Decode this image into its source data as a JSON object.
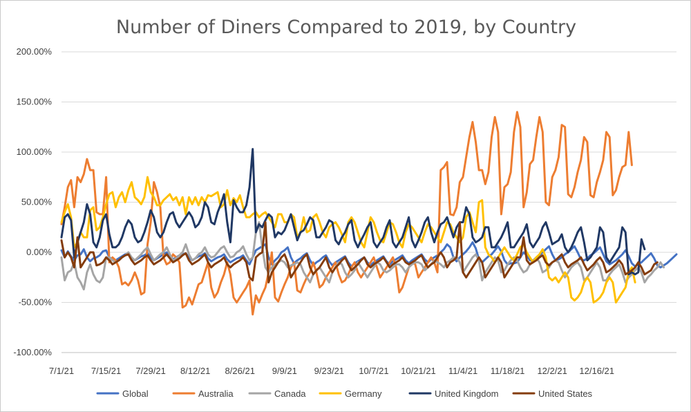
{
  "chart_data": {
    "type": "line",
    "title": "Number of Diners Compared to 2019, by Country",
    "xlabel": "",
    "ylabel": "",
    "ylim": [
      -1.0,
      2.0
    ],
    "yticks": [
      "200.00%",
      "150.00%",
      "100.00%",
      "50.00%",
      "0.00%",
      "-50.00%",
      "-100.00%"
    ],
    "xticks": [
      "7/1/21",
      "7/15/21",
      "7/29/21",
      "8/12/21",
      "8/26/21",
      "9/9/21",
      "9/23/21",
      "10/7/21",
      "10/21/21",
      "11/4/21",
      "11/18/21",
      "12/2/21",
      "12/16/21"
    ],
    "x_start": "2021-07-01",
    "legend_position": "bottom",
    "grid": true,
    "series": [
      {
        "name": "Global",
        "color": "#4472C4",
        "values": [
          0.02,
          -0.05,
          0.01,
          -0.04,
          -0.08,
          -0.03,
          -0.02,
          0.03,
          -0.05,
          -0.09,
          -0.06,
          -0.05,
          -0.03,
          0.01,
          0.02,
          -0.05,
          -0.07,
          -0.08,
          -0.06,
          -0.04,
          -0.02,
          -0.01,
          -0.06,
          -0.08,
          -0.06,
          -0.04,
          -0.03,
          -0.01,
          -0.05,
          -0.08,
          -0.06,
          -0.04,
          -0.02,
          0.0,
          -0.03,
          -0.07,
          -0.05,
          -0.03,
          -0.02,
          -0.01,
          -0.05,
          -0.08,
          -0.06,
          -0.04,
          -0.03,
          -0.01,
          -0.06,
          -0.09,
          -0.07,
          -0.05,
          -0.04,
          -0.02,
          -0.07,
          -0.1,
          -0.08,
          -0.06,
          -0.05,
          -0.03,
          -0.08,
          -0.12,
          -0.05,
          0.02,
          0.04,
          0.06,
          0.08,
          -0.05,
          -0.12,
          -0.08,
          -0.05,
          0.0,
          0.02,
          0.05,
          -0.05,
          -0.11,
          -0.08,
          -0.06,
          -0.03,
          -0.01,
          -0.08,
          -0.13,
          -0.1,
          -0.08,
          -0.05,
          -0.03,
          -0.09,
          -0.13,
          -0.1,
          -0.08,
          -0.06,
          -0.04,
          -0.1,
          -0.14,
          -0.11,
          -0.09,
          -0.07,
          -0.05,
          -0.1,
          -0.13,
          -0.1,
          -0.08,
          -0.06,
          -0.04,
          -0.09,
          -0.12,
          -0.09,
          -0.07,
          -0.05,
          -0.03,
          -0.08,
          -0.11,
          -0.08,
          -0.06,
          -0.04,
          -0.02,
          -0.07,
          -0.1,
          -0.07,
          -0.05,
          -0.03,
          0.0,
          0.03,
          0.08,
          0.05,
          -0.05,
          -0.09,
          -0.05,
          -0.02,
          0.01,
          0.05,
          0.1,
          0.04,
          -0.07,
          -0.1,
          -0.07,
          -0.04,
          -0.02,
          0.02,
          0.06,
          0.01,
          -0.08,
          -0.12,
          -0.11,
          -0.11,
          -0.1,
          -0.05,
          0.0,
          -0.03,
          -0.08,
          -0.08,
          -0.06,
          -0.03,
          0.0,
          0.03,
          0.06,
          -0.02,
          -0.08,
          -0.07,
          -0.05,
          -0.02,
          0.0,
          0.03,
          0.06,
          0.0,
          -0.07,
          -0.08,
          -0.06,
          -0.03,
          -0.01,
          0.02,
          0.05,
          -0.02,
          -0.09,
          -0.12,
          -0.1,
          -0.08,
          -0.05,
          -0.02,
          0.02,
          -0.04,
          -0.11,
          -0.14,
          -0.12,
          -0.1,
          -0.07,
          -0.04,
          -0.01,
          -0.06,
          -0.13,
          -0.15,
          -0.13,
          -0.11,
          -0.08,
          -0.05,
          -0.02
        ]
      },
      {
        "name": "Australia",
        "color": "#ED7D31",
        "values": [
          0.28,
          0.45,
          0.65,
          0.72,
          0.45,
          0.75,
          0.7,
          0.78,
          0.93,
          0.82,
          0.82,
          0.4,
          0.38,
          0.38,
          0.75,
          -0.1,
          -0.05,
          -0.08,
          -0.15,
          -0.32,
          -0.3,
          -0.33,
          -0.28,
          -0.2,
          -0.28,
          -0.42,
          -0.4,
          0.08,
          0.3,
          0.7,
          0.6,
          0.45,
          -0.05,
          -0.12,
          -0.1,
          -0.02,
          -0.05,
          -0.1,
          -0.55,
          -0.53,
          -0.45,
          -0.52,
          -0.42,
          -0.32,
          -0.3,
          -0.2,
          -0.1,
          -0.35,
          -0.45,
          -0.4,
          -0.3,
          -0.22,
          -0.1,
          -0.22,
          -0.45,
          -0.5,
          -0.45,
          -0.4,
          -0.35,
          -0.28,
          -0.62,
          -0.43,
          -0.5,
          -0.42,
          -0.35,
          -0.2,
          0.0,
          -0.45,
          -0.49,
          -0.4,
          -0.32,
          -0.25,
          -0.15,
          -0.1,
          -0.38,
          -0.4,
          -0.32,
          -0.25,
          -0.2,
          -0.1,
          -0.2,
          -0.35,
          -0.32,
          -0.25,
          -0.2,
          -0.15,
          -0.1,
          -0.22,
          -0.3,
          -0.28,
          -0.22,
          -0.15,
          -0.1,
          -0.2,
          -0.25,
          -0.2,
          -0.15,
          -0.1,
          -0.05,
          -0.15,
          -0.25,
          -0.2,
          -0.15,
          -0.1,
          -0.05,
          -0.15,
          -0.4,
          -0.35,
          -0.25,
          -0.15,
          -0.1,
          -0.12,
          -0.25,
          -0.2,
          -0.15,
          -0.1,
          -0.05,
          -0.1,
          -0.2,
          0.82,
          0.85,
          0.9,
          0.38,
          0.37,
          0.45,
          0.7,
          0.75,
          0.95,
          1.15,
          1.3,
          1.1,
          0.82,
          0.82,
          0.68,
          0.8,
          1.15,
          1.35,
          1.2,
          0.38,
          0.65,
          0.68,
          0.8,
          1.2,
          1.4,
          1.25,
          0.45,
          0.6,
          0.88,
          0.92,
          1.15,
          1.35,
          1.2,
          0.5,
          0.47,
          0.75,
          0.82,
          0.95,
          1.27,
          1.25,
          0.58,
          0.55,
          0.65,
          0.8,
          0.92,
          1.15,
          1.1,
          0.57,
          0.55,
          0.7,
          0.8,
          0.92,
          1.2,
          1.15,
          0.57,
          0.62,
          0.75,
          0.85,
          0.87,
          1.2,
          0.87
        ]
      },
      {
        "name": "Canada",
        "color": "#A5A5A5",
        "values": [
          -0.05,
          -0.28,
          -0.2,
          -0.18,
          -0.1,
          -0.25,
          -0.3,
          -0.37,
          -0.2,
          -0.12,
          -0.22,
          -0.28,
          -0.3,
          -0.25,
          -0.05,
          -0.05,
          -0.08,
          -0.1,
          -0.08,
          -0.05,
          -0.03,
          0.0,
          -0.05,
          -0.08,
          -0.05,
          -0.02,
          0.02,
          0.05,
          -0.02,
          -0.08,
          -0.05,
          -0.02,
          0.0,
          0.05,
          -0.02,
          -0.08,
          -0.06,
          -0.03,
          0.0,
          0.08,
          -0.02,
          -0.08,
          -0.06,
          -0.02,
          0.0,
          0.05,
          -0.02,
          -0.05,
          -0.04,
          0.0,
          0.04,
          0.06,
          0.0,
          -0.05,
          -0.04,
          0.0,
          0.02,
          0.06,
          -0.02,
          -0.08,
          -0.05,
          0.2,
          0.3,
          0.05,
          -0.15,
          -0.2,
          -0.15,
          -0.12,
          -0.1,
          -0.08,
          -0.1,
          -0.15,
          -0.13,
          -0.12,
          -0.1,
          -0.12,
          -0.2,
          -0.25,
          -0.3,
          -0.22,
          -0.18,
          -0.15,
          -0.2,
          -0.25,
          -0.3,
          -0.2,
          -0.15,
          -0.1,
          -0.12,
          -0.2,
          -0.25,
          -0.22,
          -0.18,
          -0.1,
          -0.15,
          -0.2,
          -0.25,
          -0.2,
          -0.15,
          -0.1,
          -0.12,
          -0.18,
          -0.2,
          -0.18,
          -0.15,
          -0.12,
          -0.12,
          -0.15,
          -0.2,
          -0.15,
          -0.12,
          -0.1,
          -0.1,
          -0.12,
          -0.18,
          -0.15,
          -0.12,
          -0.08,
          -0.1,
          -0.12,
          -0.15,
          -0.1,
          -0.08,
          -0.05,
          -0.05,
          -0.1,
          -0.2,
          -0.15,
          -0.1,
          -0.05,
          -0.02,
          -0.08,
          -0.28,
          -0.2,
          -0.15,
          -0.1,
          -0.05,
          -0.08,
          -0.2,
          -0.18,
          -0.12,
          -0.08,
          -0.05,
          -0.08,
          -0.15,
          -0.2,
          -0.18,
          -0.12,
          -0.08,
          -0.05,
          -0.1,
          -0.2,
          -0.18,
          -0.15,
          -0.1,
          -0.08,
          -0.1,
          -0.18,
          -0.25,
          -0.2,
          -0.15,
          -0.12,
          -0.1,
          -0.15,
          -0.28,
          -0.25,
          -0.2,
          -0.15,
          -0.1,
          -0.15,
          -0.28,
          -0.28,
          -0.22,
          -0.18,
          -0.15,
          -0.12,
          -0.2,
          -0.3,
          -0.25,
          -0.22,
          -0.18,
          -0.15,
          -0.2,
          -0.3,
          -0.25,
          -0.22,
          -0.18,
          -0.15,
          -0.1,
          -0.15
        ]
      },
      {
        "name": "Germany",
        "color": "#FFC000",
        "values": [
          0.3,
          0.4,
          0.48,
          0.35,
          0.05,
          0.1,
          0.2,
          0.15,
          0.15,
          0.42,
          0.45,
          0.22,
          0.25,
          0.35,
          0.48,
          0.58,
          0.6,
          0.45,
          0.55,
          0.6,
          0.5,
          0.62,
          0.7,
          0.55,
          0.52,
          0.48,
          0.55,
          0.75,
          0.6,
          0.55,
          0.47,
          0.47,
          0.52,
          0.55,
          0.58,
          0.52,
          0.55,
          0.47,
          0.55,
          0.38,
          0.55,
          0.48,
          0.55,
          0.47,
          0.55,
          0.5,
          0.57,
          0.56,
          0.58,
          0.6,
          0.45,
          0.48,
          0.62,
          0.47,
          0.54,
          0.5,
          0.57,
          0.45,
          0.35,
          0.35,
          0.38,
          0.4,
          0.35,
          0.38,
          0.4,
          0.35,
          0.3,
          0.25,
          0.38,
          0.38,
          0.3,
          0.3,
          0.38,
          0.35,
          0.15,
          0.2,
          0.35,
          0.2,
          0.22,
          0.35,
          0.38,
          0.3,
          0.2,
          0.15,
          0.25,
          0.28,
          0.3,
          0.25,
          0.18,
          0.1,
          0.3,
          0.35,
          0.3,
          0.2,
          0.1,
          0.05,
          0.2,
          0.35,
          0.3,
          0.2,
          0.12,
          0.1,
          0.2,
          0.3,
          0.28,
          0.2,
          0.1,
          0.05,
          0.2,
          0.28,
          0.25,
          0.2,
          0.15,
          0.1,
          0.2,
          0.28,
          0.25,
          0.2,
          0.15,
          0.1,
          0.2,
          0.3,
          0.28,
          0.2,
          0.15,
          0.1,
          0.15,
          0.35,
          0.4,
          0.3,
          0.2,
          0.5,
          0.52,
          0.05,
          -0.02,
          -0.05,
          -0.1,
          -0.05,
          0.0,
          0.05,
          0.0,
          -0.05,
          -0.08,
          -0.02,
          0.05,
          0.08,
          0.0,
          -0.05,
          -0.1,
          -0.05,
          -0.02,
          0.03,
          -0.05,
          -0.25,
          -0.28,
          -0.25,
          -0.3,
          -0.25,
          -0.2,
          -0.25,
          -0.45,
          -0.48,
          -0.45,
          -0.4,
          -0.3,
          -0.25,
          -0.3,
          -0.5,
          -0.48,
          -0.45,
          -0.4,
          -0.3,
          -0.25,
          -0.3,
          -0.5,
          -0.45,
          -0.4,
          -0.35,
          -0.2,
          -0.15,
          -0.3
        ]
      },
      {
        "name": "United Kingdom",
        "color": "#203864",
        "values": [
          0.15,
          0.35,
          0.38,
          0.32,
          -0.05,
          0.1,
          0.2,
          0.3,
          0.48,
          0.38,
          0.1,
          0.05,
          0.15,
          0.32,
          0.38,
          0.18,
          0.05,
          0.05,
          0.08,
          0.15,
          0.25,
          0.32,
          0.28,
          0.15,
          0.1,
          0.12,
          0.2,
          0.3,
          0.42,
          0.35,
          0.2,
          0.15,
          0.2,
          0.3,
          0.38,
          0.4,
          0.3,
          0.25,
          0.3,
          0.35,
          0.4,
          0.35,
          0.25,
          0.28,
          0.35,
          0.5,
          0.45,
          0.3,
          0.28,
          0.4,
          0.48,
          0.58,
          0.3,
          0.1,
          0.52,
          0.45,
          0.4,
          0.4,
          0.47,
          0.65,
          1.03,
          0.2,
          0.28,
          0.25,
          0.32,
          0.38,
          0.35,
          0.15,
          0.2,
          0.18,
          0.22,
          0.3,
          0.38,
          0.25,
          0.12,
          0.2,
          0.22,
          0.28,
          0.35,
          0.32,
          0.15,
          0.15,
          0.2,
          0.25,
          0.32,
          0.3,
          0.12,
          0.08,
          0.15,
          0.2,
          0.28,
          0.32,
          0.12,
          0.05,
          0.12,
          0.18,
          0.25,
          0.3,
          0.1,
          0.05,
          0.1,
          0.15,
          0.25,
          0.32,
          0.1,
          0.05,
          0.1,
          0.15,
          0.25,
          0.35,
          0.12,
          0.05,
          0.12,
          0.2,
          0.3,
          0.35,
          0.2,
          0.1,
          0.2,
          0.28,
          0.3,
          0.35,
          0.25,
          0.15,
          0.25,
          0.3,
          0.3,
          0.45,
          0.38,
          0.15,
          0.1,
          0.12,
          0.15,
          0.25,
          0.25,
          0.05,
          0.05,
          0.1,
          0.15,
          0.22,
          0.3,
          0.05,
          0.05,
          0.1,
          0.15,
          0.2,
          0.28,
          0.1,
          0.05,
          0.1,
          0.15,
          0.25,
          0.3,
          0.2,
          0.08,
          0.1,
          0.12,
          0.18,
          0.05,
          0.0,
          0.05,
          0.12,
          0.2,
          0.25,
          0.1,
          -0.08,
          -0.05,
          0.0,
          0.05,
          0.25,
          0.2,
          -0.05,
          -0.1,
          -0.05,
          0.0,
          0.05,
          0.25,
          0.2,
          -0.22,
          -0.2,
          -0.22,
          -0.2,
          0.13,
          0.03
        ]
      },
      {
        "name": "United States",
        "color": "#843C0C",
        "values": [
          0.12,
          -0.05,
          0.0,
          -0.05,
          -0.15,
          0.15,
          -0.15,
          -0.1,
          -0.05,
          0.0,
          0.0,
          -0.13,
          -0.12,
          -0.1,
          -0.05,
          -0.08,
          -0.12,
          -0.1,
          -0.08,
          -0.05,
          -0.03,
          -0.02,
          -0.08,
          -0.12,
          -0.1,
          -0.08,
          -0.05,
          -0.03,
          -0.08,
          -0.12,
          -0.1,
          -0.08,
          -0.05,
          -0.02,
          -0.06,
          -0.1,
          -0.08,
          -0.06,
          -0.03,
          -0.01,
          -0.08,
          -0.12,
          -0.1,
          -0.08,
          -0.05,
          -0.02,
          -0.1,
          -0.15,
          -0.12,
          -0.1,
          -0.08,
          -0.05,
          -0.12,
          -0.15,
          -0.12,
          -0.1,
          -0.08,
          -0.05,
          -0.1,
          -0.25,
          -0.28,
          -0.05,
          -0.02,
          0.0,
          0.3,
          -0.3,
          -0.2,
          -0.15,
          -0.1,
          -0.05,
          -0.02,
          -0.1,
          -0.25,
          -0.2,
          -0.15,
          -0.1,
          -0.05,
          -0.02,
          -0.15,
          -0.22,
          -0.18,
          -0.15,
          -0.1,
          -0.05,
          -0.15,
          -0.2,
          -0.15,
          -0.12,
          -0.08,
          -0.05,
          -0.12,
          -0.18,
          -0.15,
          -0.12,
          -0.08,
          -0.05,
          -0.12,
          -0.15,
          -0.12,
          -0.1,
          -0.08,
          -0.05,
          -0.1,
          -0.15,
          -0.12,
          -0.1,
          -0.08,
          -0.05,
          -0.1,
          -0.12,
          -0.1,
          -0.08,
          -0.05,
          -0.03,
          -0.1,
          -0.15,
          -0.12,
          -0.1,
          -0.05,
          0.0,
          -0.05,
          -0.15,
          -0.1,
          -0.08,
          -0.05,
          0.3,
          -0.2,
          -0.25,
          -0.2,
          -0.15,
          -0.1,
          -0.05,
          -0.1,
          -0.25,
          -0.2,
          -0.15,
          -0.1,
          -0.05,
          -0.1,
          -0.25,
          -0.2,
          -0.15,
          -0.1,
          -0.05,
          -0.05,
          0.15,
          -0.08,
          -0.12,
          -0.1,
          -0.08,
          -0.05,
          -0.03,
          -0.1,
          -0.13,
          -0.1,
          -0.08,
          -0.05,
          -0.02,
          -0.1,
          -0.15,
          -0.12,
          -0.1,
          -0.08,
          -0.05,
          -0.12,
          -0.18,
          -0.15,
          -0.12,
          -0.08,
          -0.05,
          -0.1,
          -0.2,
          -0.18,
          -0.15,
          -0.12,
          -0.08,
          -0.12,
          -0.22,
          -0.2,
          -0.18,
          -0.15,
          -0.1,
          -0.15,
          -0.22,
          -0.2,
          -0.18,
          -0.12,
          -0.1
        ]
      }
    ]
  }
}
